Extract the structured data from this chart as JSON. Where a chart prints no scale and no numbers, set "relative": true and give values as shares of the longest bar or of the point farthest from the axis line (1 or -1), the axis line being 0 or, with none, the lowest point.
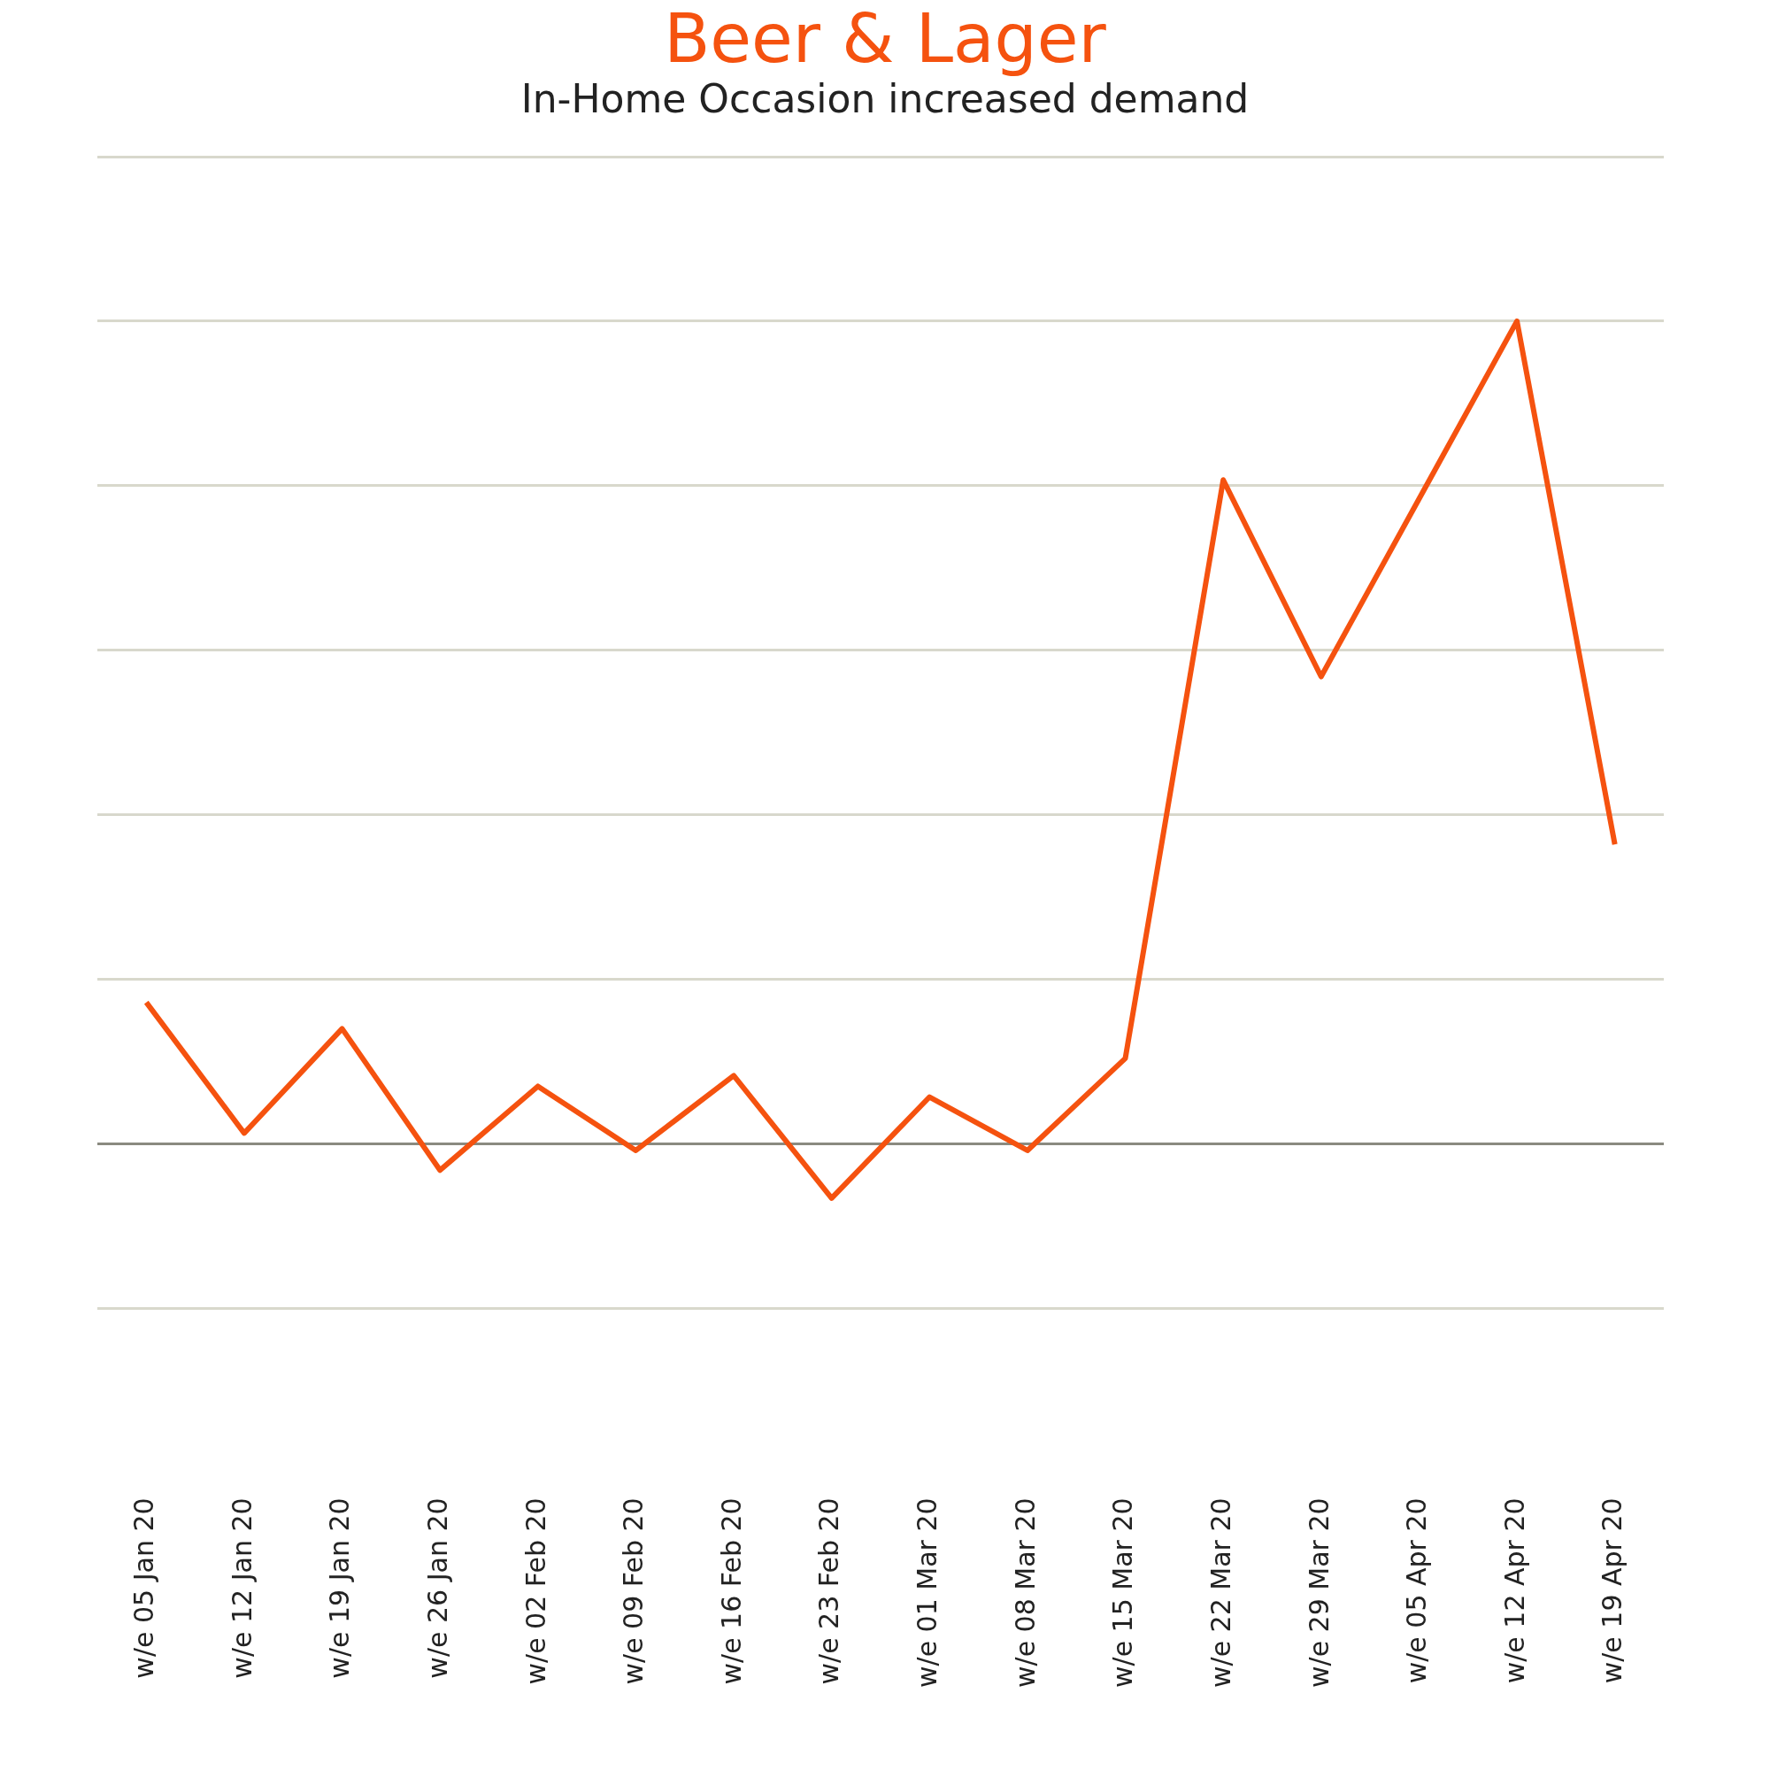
{
  "chart_data": {
    "type": "line",
    "title": "Beer & Lager",
    "subtitle": "In-Home Occasion increased demand",
    "relative": true,
    "categories": [
      "w/e 05 Jan 20",
      "w/e 12 Jan 20",
      "w/e 19 Jan 20",
      "w/e 26 Jan 20",
      "w/e 02 Feb 20",
      "w/e 09 Feb 20",
      "w/e 16 Feb 20",
      "w/e 23 Feb 20",
      "w/e 01 Mar 20",
      "w/e 08 Mar 20",
      "w/e 15 Mar 20",
      "w/e 22 Mar 20",
      "w/e 29 Mar 20",
      "w/e 05 Apr 20",
      "w/e 12 Apr 20",
      "w/e 19 Apr 20"
    ],
    "series": [
      {
        "color": "#f5520f",
        "values": [
          0.172,
          0.013,
          0.14,
          -0.032,
          0.07,
          -0.008,
          0.083,
          -0.066,
          0.057,
          -0.008,
          0.104,
          0.807,
          0.568,
          0.784,
          1,
          0.364
        ]
      }
    ],
    "grid": "y",
    "legend": false,
    "marker": "none",
    "line_style": "solid"
  }
}
